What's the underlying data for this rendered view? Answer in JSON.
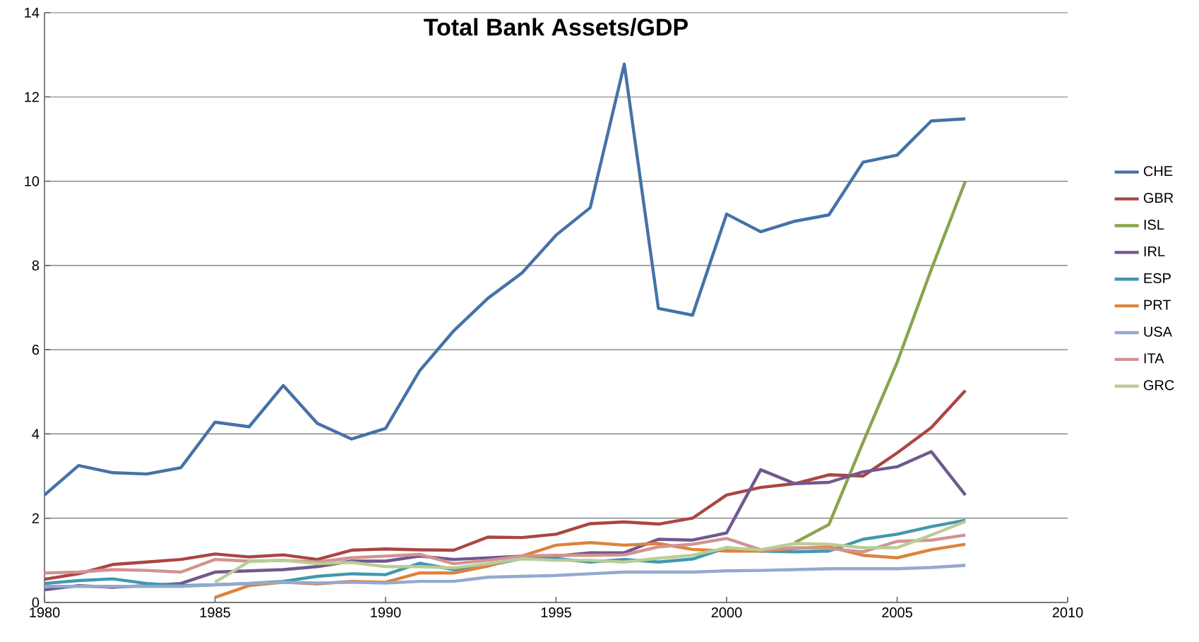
{
  "chart_data": {
    "type": "line",
    "title": "Total Bank Assets/GDP",
    "x": [
      1980,
      1981,
      1982,
      1983,
      1984,
      1985,
      1986,
      1987,
      1988,
      1989,
      1990,
      1991,
      1992,
      1993,
      1994,
      1995,
      1996,
      1997,
      1998,
      1999,
      2000,
      2001,
      2002,
      2003,
      2004,
      2005,
      2006,
      2007
    ],
    "series": [
      {
        "name": "CHE",
        "color": "#4572a7",
        "values": [
          2.55,
          3.25,
          3.08,
          3.05,
          3.2,
          4.28,
          4.17,
          5.15,
          4.25,
          3.88,
          4.13,
          5.5,
          6.45,
          7.22,
          7.82,
          8.72,
          9.37,
          12.78,
          6.98,
          6.82,
          9.22,
          8.8,
          9.05,
          9.2,
          10.45,
          10.62,
          11.43,
          11.48
        ]
      },
      {
        "name": "GBR",
        "color": "#aa4643",
        "values": [
          0.55,
          0.68,
          0.9,
          0.96,
          1.02,
          1.15,
          1.08,
          1.13,
          1.02,
          1.24,
          1.27,
          1.25,
          1.24,
          1.55,
          1.54,
          1.62,
          1.87,
          1.91,
          1.86,
          2.0,
          2.55,
          2.73,
          2.82,
          3.03,
          3.0,
          3.55,
          4.15,
          5.03
        ]
      },
      {
        "name": "ISL",
        "color": "#89a54e",
        "x": [
          2002,
          2003,
          2004,
          2005,
          2006,
          2007
        ],
        "values": [
          1.42,
          1.85,
          3.8,
          5.7,
          7.9,
          10.0
        ]
      },
      {
        "name": "IRL",
        "color": "#71588f",
        "values": [
          0.3,
          0.4,
          0.36,
          0.4,
          0.45,
          0.72,
          0.75,
          0.78,
          0.85,
          0.98,
          0.98,
          1.1,
          1.02,
          1.06,
          1.1,
          1.1,
          1.18,
          1.18,
          1.5,
          1.48,
          1.65,
          3.15,
          2.82,
          2.85,
          3.1,
          3.22,
          3.58,
          2.55
        ]
      },
      {
        "name": "ESP",
        "color": "#4198af",
        "values": [
          0.45,
          0.52,
          0.56,
          0.45,
          0.4,
          0.42,
          0.45,
          0.5,
          0.62,
          0.68,
          0.66,
          0.93,
          0.78,
          0.88,
          1.04,
          1.04,
          0.96,
          1.02,
          0.96,
          1.03,
          1.3,
          1.22,
          1.2,
          1.22,
          1.5,
          1.62,
          1.8,
          1.95
        ]
      },
      {
        "name": "PRT",
        "color": "#db843d",
        "x": [
          1985,
          1986,
          1987,
          1988,
          1989,
          1990,
          1991,
          1992,
          1993,
          1994,
          1995,
          1996,
          1997,
          1998,
          1999,
          2000,
          2001,
          2002,
          2003,
          2004,
          2005,
          2006,
          2007
        ],
        "values": [
          0.12,
          0.4,
          0.48,
          0.44,
          0.5,
          0.48,
          0.7,
          0.7,
          0.86,
          1.1,
          1.36,
          1.42,
          1.36,
          1.4,
          1.26,
          1.22,
          1.22,
          1.28,
          1.32,
          1.12,
          1.06,
          1.25,
          1.38
        ]
      },
      {
        "name": "USA",
        "color": "#93a9cf",
        "values": [
          0.38,
          0.38,
          0.38,
          0.38,
          0.38,
          0.42,
          0.45,
          0.48,
          0.46,
          0.48,
          0.46,
          0.5,
          0.5,
          0.6,
          0.62,
          0.64,
          0.68,
          0.72,
          0.72,
          0.72,
          0.75,
          0.76,
          0.78,
          0.8,
          0.8,
          0.8,
          0.83,
          0.88
        ]
      },
      {
        "name": "ITA",
        "color": "#d19392",
        "values": [
          0.7,
          0.72,
          0.78,
          0.76,
          0.72,
          1.02,
          0.98,
          1.0,
          0.96,
          1.06,
          1.1,
          1.14,
          0.92,
          1.0,
          1.1,
          1.12,
          1.12,
          1.13,
          1.32,
          1.38,
          1.52,
          1.25,
          1.3,
          1.28,
          1.2,
          1.45,
          1.48,
          1.6
        ]
      },
      {
        "name": "GRC",
        "color": "#b9cd96",
        "x": [
          1985,
          1986,
          1987,
          1988,
          1989,
          1990,
          1991,
          1992,
          1993,
          1994,
          1995,
          1996,
          1997,
          1998,
          1999,
          2000,
          2001,
          2002,
          2003,
          2004,
          2005,
          2006,
          2007
        ],
        "values": [
          0.48,
          0.97,
          1.0,
          0.92,
          0.95,
          0.85,
          0.85,
          0.82,
          0.92,
          1.04,
          1.0,
          1.0,
          0.96,
          1.05,
          1.12,
          1.3,
          1.25,
          1.4,
          1.38,
          1.3,
          1.3,
          1.6,
          1.92
        ]
      }
    ],
    "xlim": [
      1980,
      2010
    ],
    "xticks": [
      1980,
      1985,
      1990,
      1995,
      2000,
      2005,
      2010
    ],
    "ylim": [
      0,
      14
    ],
    "yticks": [
      0,
      2,
      4,
      6,
      8,
      10,
      12,
      14
    ],
    "grid": "y",
    "legend": "right",
    "marker": "none",
    "line_style": "solid"
  }
}
